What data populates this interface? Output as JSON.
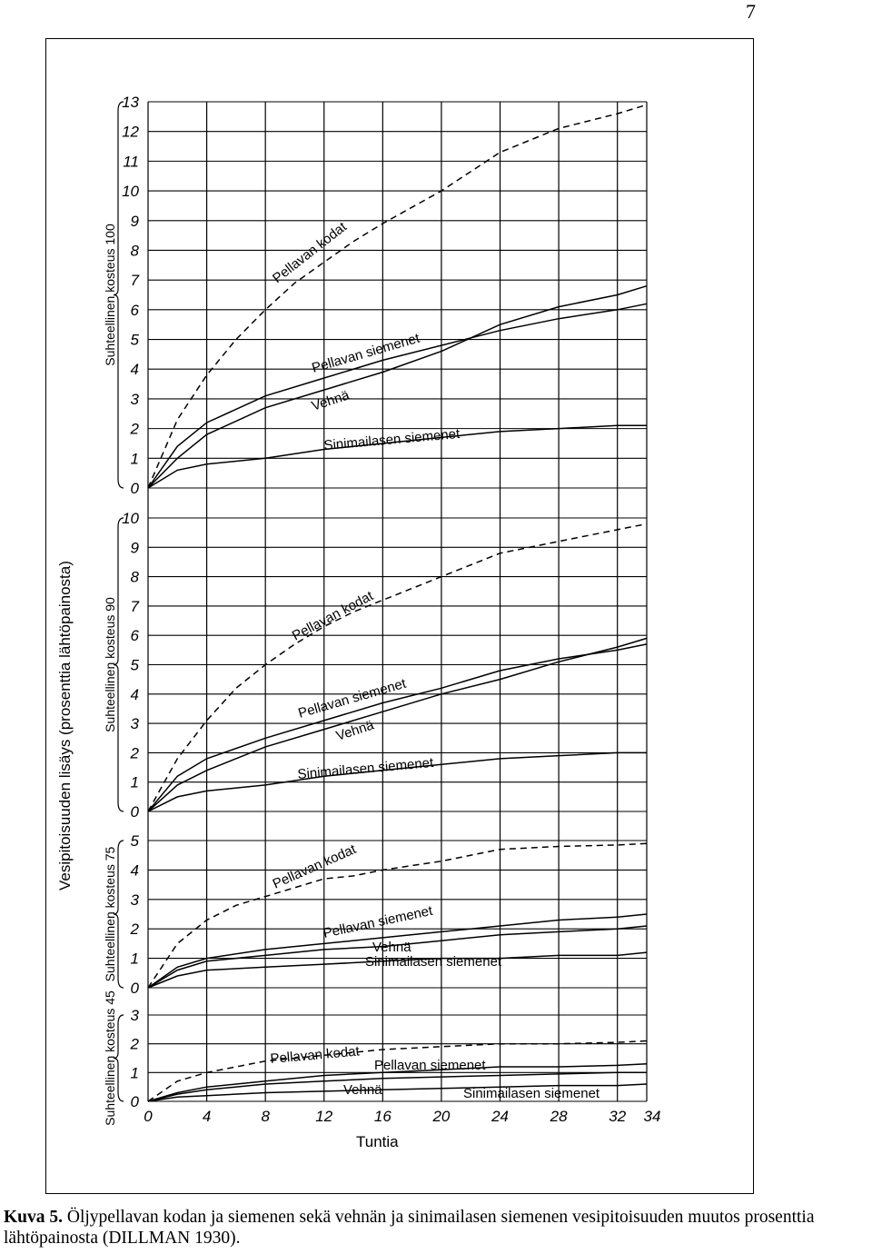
{
  "page_number": "7",
  "caption": {
    "label": "Kuva 5.",
    "text": "Öljypellavan kodan ja siemenen sekä vehnän ja sinimailasen siemenen vesipitoisuuden muutos prosenttia lähtöpainosta (DILLMAN 1930)."
  },
  "chart_data": {
    "type": "line",
    "title": "",
    "xlabel": "Tuntia",
    "ylabel": "Vesipitoisuuden lisäys (prosenttia lähtöpainosta)",
    "x_ticks": [
      "0",
      "4",
      "8",
      "12",
      "16",
      "20",
      "24",
      "28",
      "32",
      "34"
    ],
    "xlim": [
      0,
      34
    ],
    "grid": true,
    "panels": [
      {
        "name": "Suhteellinen kosteus 100",
        "ylim": [
          0,
          13
        ],
        "y_ticks": [
          "0",
          "1",
          "2",
          "3",
          "4",
          "5",
          "6",
          "7",
          "8",
          "9",
          "10",
          "11",
          "12",
          "13"
        ],
        "series": [
          {
            "name": "Pellavan kodat",
            "style": "dashed",
            "x": [
              0,
              2,
              4,
              6,
              8,
              10,
              12,
              14,
              16,
              20,
              24,
              28,
              32,
              34
            ],
            "y": [
              0,
              2.3,
              3.8,
              5.0,
              6.0,
              6.9,
              7.6,
              8.3,
              8.9,
              10.0,
              11.3,
              12.1,
              12.6,
              12.9
            ]
          },
          {
            "name": "Pellavan siemenet",
            "style": "solid",
            "x": [
              0,
              2,
              4,
              8,
              12,
              16,
              20,
              24,
              28,
              32,
              34
            ],
            "y": [
              0,
              1.4,
              2.2,
              3.1,
              3.7,
              4.3,
              4.8,
              5.3,
              5.7,
              6.0,
              6.2
            ]
          },
          {
            "name": "Vehnä",
            "style": "solid",
            "x": [
              0,
              2,
              4,
              8,
              12,
              16,
              20,
              24,
              28,
              32,
              34
            ],
            "y": [
              0,
              1.0,
              1.8,
              2.7,
              3.3,
              3.9,
              4.6,
              5.5,
              6.1,
              6.5,
              6.8
            ]
          },
          {
            "name": "Sinimailasen siemenet",
            "style": "solid",
            "x": [
              0,
              2,
              4,
              8,
              12,
              16,
              20,
              24,
              28,
              32,
              34
            ],
            "y": [
              0,
              0.6,
              0.8,
              1.0,
              1.3,
              1.5,
              1.7,
              1.9,
              2.0,
              2.1,
              2.1
            ]
          }
        ],
        "labels": [
          "Pellavan kodat",
          "Pellavan siemenet",
          "Vehnä",
          "Sinimailasen siemenet"
        ]
      },
      {
        "name": "Suhteellinen kosteus 90",
        "ylim": [
          0,
          10
        ],
        "y_ticks": [
          "0",
          "1",
          "2",
          "3",
          "4",
          "5",
          "6",
          "7",
          "8",
          "9",
          "10"
        ],
        "series": [
          {
            "name": "Pellavan kodat",
            "style": "dashed",
            "x": [
              0,
              2,
              4,
              6,
              8,
              10,
              12,
              14,
              16,
              20,
              24,
              28,
              32,
              34
            ],
            "y": [
              0,
              1.8,
              3.1,
              4.2,
              5.0,
              5.7,
              6.3,
              6.8,
              7.2,
              8.0,
              8.8,
              9.2,
              9.6,
              9.8
            ]
          },
          {
            "name": "Pellavan siemenet",
            "style": "solid",
            "x": [
              0,
              2,
              4,
              8,
              12,
              16,
              20,
              24,
              28,
              32,
              34
            ],
            "y": [
              0,
              1.2,
              1.8,
              2.5,
              3.1,
              3.7,
              4.2,
              4.8,
              5.2,
              5.5,
              5.7
            ]
          },
          {
            "name": "Vehnä",
            "style": "solid",
            "x": [
              0,
              2,
              4,
              8,
              12,
              16,
              20,
              24,
              28,
              32,
              34
            ],
            "y": [
              0,
              0.9,
              1.4,
              2.2,
              2.8,
              3.4,
              4.0,
              4.5,
              5.1,
              5.6,
              5.9
            ]
          },
          {
            "name": "Sinimailasen siemenet",
            "style": "solid",
            "x": [
              0,
              2,
              4,
              8,
              12,
              16,
              20,
              24,
              28,
              32,
              34
            ],
            "y": [
              0,
              0.5,
              0.7,
              0.9,
              1.2,
              1.4,
              1.6,
              1.8,
              1.9,
              2.0,
              2.0
            ]
          }
        ],
        "labels": [
          "Pellavan kodat",
          "Pellavan siemenet",
          "Vehnä",
          "Sinimailasen siemenet"
        ]
      },
      {
        "name": "Suhteellinen kosteus 75",
        "ylim": [
          0,
          5
        ],
        "y_ticks": [
          "0",
          "1",
          "2",
          "3",
          "4",
          "5"
        ],
        "series": [
          {
            "name": "Pellavan kodat",
            "style": "dashed",
            "x": [
              0,
              2,
              4,
              6,
              8,
              10,
              12,
              14,
              16,
              20,
              24,
              28,
              32,
              34
            ],
            "y": [
              0,
              1.5,
              2.3,
              2.8,
              3.1,
              3.4,
              3.7,
              3.8,
              4.0,
              4.3,
              4.7,
              4.8,
              4.85,
              4.9
            ]
          },
          {
            "name": "Pellavan siemenet",
            "style": "solid",
            "x": [
              0,
              2,
              4,
              8,
              12,
              16,
              20,
              24,
              28,
              32,
              34
            ],
            "y": [
              0,
              0.7,
              1.0,
              1.3,
              1.5,
              1.7,
              1.9,
              2.1,
              2.3,
              2.4,
              2.5
            ]
          },
          {
            "name": "Vehnä",
            "style": "solid",
            "x": [
              0,
              2,
              4,
              8,
              12,
              16,
              20,
              24,
              28,
              32,
              34
            ],
            "y": [
              0,
              0.6,
              0.9,
              1.1,
              1.3,
              1.4,
              1.6,
              1.8,
              1.9,
              2.0,
              2.1
            ]
          },
          {
            "name": "Sinimailasen siemenet",
            "style": "solid",
            "x": [
              0,
              2,
              4,
              8,
              12,
              16,
              20,
              24,
              28,
              32,
              34
            ],
            "y": [
              0,
              0.4,
              0.6,
              0.7,
              0.8,
              0.9,
              1.0,
              1.0,
              1.1,
              1.1,
              1.2
            ]
          }
        ],
        "labels": [
          "Pellavan kodat",
          "Pellavan siemenet",
          "Vehnä",
          "Sinimailasen siemenet"
        ]
      },
      {
        "name": "Suhteellinen kosteus 45",
        "ylim": [
          0,
          3
        ],
        "y_ticks": [
          "0",
          "1",
          "2",
          "3"
        ],
        "series": [
          {
            "name": "Pellavan kodat",
            "style": "dashed",
            "x": [
              0,
              2,
              4,
              6,
              8,
              12,
              16,
              20,
              24,
              28,
              32,
              34
            ],
            "y": [
              0,
              0.7,
              1.0,
              1.2,
              1.4,
              1.6,
              1.8,
              1.9,
              2.0,
              2.0,
              2.05,
              2.1
            ]
          },
          {
            "name": "Pellavan siemenet",
            "style": "solid",
            "x": [
              0,
              2,
              4,
              8,
              12,
              16,
              20,
              24,
              28,
              32,
              34
            ],
            "y": [
              0,
              0.3,
              0.5,
              0.7,
              0.9,
              1.0,
              1.1,
              1.2,
              1.2,
              1.25,
              1.3
            ]
          },
          {
            "name": "Vehnä",
            "style": "solid",
            "x": [
              0,
              2,
              4,
              8,
              12,
              16,
              20,
              24,
              28,
              32,
              34
            ],
            "y": [
              0,
              0.25,
              0.4,
              0.6,
              0.7,
              0.8,
              0.85,
              0.9,
              0.95,
              1.0,
              1.0
            ]
          },
          {
            "name": "Sinimailasen siemenet",
            "style": "solid",
            "x": [
              0,
              2,
              4,
              8,
              12,
              16,
              20,
              24,
              28,
              32,
              34
            ],
            "y": [
              0,
              0.15,
              0.2,
              0.3,
              0.35,
              0.4,
              0.45,
              0.5,
              0.55,
              0.55,
              0.6
            ]
          }
        ],
        "labels": [
          "Pellavan kodat",
          "Pellavan siemenet",
          "Vehnä",
          "Sinimailasen siemenet"
        ]
      }
    ]
  }
}
